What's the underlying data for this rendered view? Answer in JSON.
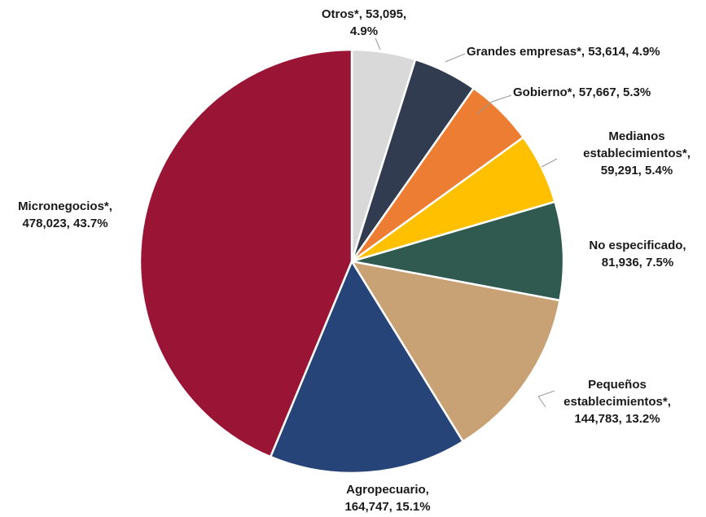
{
  "chart_data": {
    "type": "pie",
    "title": "",
    "start": "top",
    "direction": "clockwise",
    "slices": [
      {
        "name": "Otros*",
        "value": 53095,
        "percent": 4.9,
        "color": "#d9d9d9",
        "label_lines": [
          "Otros*, 53,095,",
          "4.9%"
        ]
      },
      {
        "name": "Grandes empresas*",
        "value": 53614,
        "percent": 4.9,
        "color": "#323c50",
        "label_lines": [
          "Grandes empresas*, 53,614, 4.9%"
        ]
      },
      {
        "name": "Gobierno*",
        "value": 57667,
        "percent": 5.3,
        "color": "#ec7d32",
        "label_lines": [
          "Gobierno*, 57,667, 5.3%"
        ]
      },
      {
        "name": "Medianos establecimientos*",
        "value": 59291,
        "percent": 5.4,
        "color": "#ffc000",
        "label_lines": [
          "Medianos",
          "establecimientos*,",
          "59,291, 5.4%"
        ]
      },
      {
        "name": "No especificado",
        "value": 81936,
        "percent": 7.5,
        "color": "#305a50",
        "label_lines": [
          "No especificado,",
          "81,936, 7.5%"
        ]
      },
      {
        "name": "Pequeños establecimientos*",
        "value": 144783,
        "percent": 13.2,
        "color": "#c8a275",
        "label_lines": [
          "Pequeños",
          "establecimientos*,",
          "144,783, 13.2%"
        ]
      },
      {
        "name": "Agropecuario",
        "value": 164747,
        "percent": 15.1,
        "color": "#264478",
        "label_lines": [
          "Agropecuario,",
          "164,747, 15.1%"
        ]
      },
      {
        "name": "Micronegocios*",
        "value": 478023,
        "percent": 43.7,
        "color": "#9a1435",
        "label_lines": [
          "Micronegocios*,",
          "478,023, 43.7%"
        ]
      }
    ]
  }
}
